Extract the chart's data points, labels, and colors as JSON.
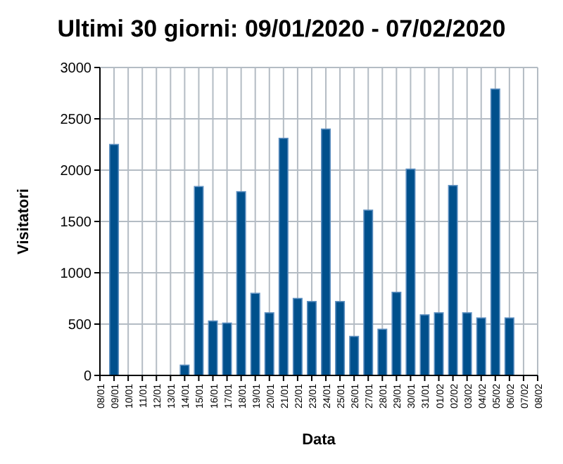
{
  "chart_data": {
    "type": "bar",
    "title": "Ultimi 30 giorni: 09/01/2020 - 07/02/2020",
    "xlabel": "Data",
    "ylabel": "Visitatori",
    "categories": [
      "08/01",
      "09/01",
      "10/01",
      "11/01",
      "12/01",
      "13/01",
      "14/01",
      "15/01",
      "16/01",
      "17/01",
      "18/01",
      "19/01",
      "20/01",
      "21/01",
      "22/01",
      "23/01",
      "24/01",
      "25/01",
      "26/01",
      "27/01",
      "28/01",
      "29/01",
      "30/01",
      "31/01",
      "01/02",
      "02/02",
      "03/02",
      "04/02",
      "05/02",
      "06/02",
      "07/02",
      "08/02"
    ],
    "values": [
      null,
      2250,
      null,
      null,
      null,
      null,
      100,
      1840,
      530,
      510,
      1790,
      800,
      610,
      2310,
      750,
      720,
      2400,
      720,
      380,
      1610,
      450,
      810,
      2010,
      590,
      610,
      1850,
      610,
      560,
      2790,
      560,
      null,
      null
    ],
    "color": "#00508c",
    "ylim": [
      0,
      3000
    ],
    "yticks": [
      0,
      500,
      1000,
      1500,
      2000,
      2500,
      3000
    ],
    "grid": true
  }
}
